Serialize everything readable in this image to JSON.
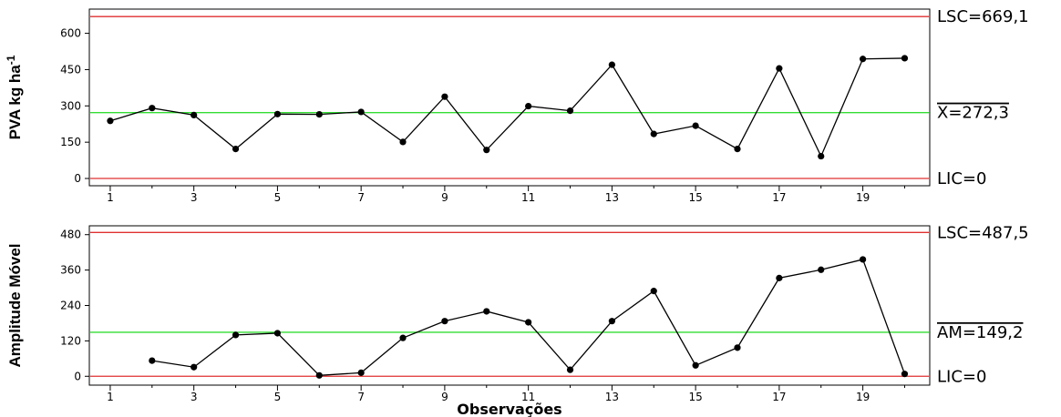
{
  "chart_data": [
    {
      "type": "line",
      "ylabel": "PVA kg ha",
      "ylabel_superscript": "-1",
      "xlabel": "",
      "x": [
        1,
        2,
        3,
        4,
        5,
        6,
        7,
        8,
        9,
        10,
        11,
        12,
        13,
        14,
        15,
        16,
        17,
        18,
        19,
        20
      ],
      "values": [
        238,
        291,
        262,
        122,
        266,
        265,
        275,
        151,
        338,
        118,
        299,
        280,
        470,
        184,
        218,
        122,
        455,
        92,
        494,
        497
      ],
      "xticks": [
        "1",
        "3",
        "5",
        "7",
        "9",
        "11",
        "13",
        "15",
        "17",
        "19"
      ],
      "yticks": [
        "0",
        "150",
        "300",
        "450",
        "600"
      ],
      "ylim": [
        -30,
        700
      ],
      "control_lines": [
        {
          "value": 669.1,
          "color": "#e03030",
          "label": "LSC=669,1"
        },
        {
          "value": 272.3,
          "color": "#33dd33",
          "label": "X=272,3",
          "overline": true
        },
        {
          "value": 0,
          "color": "#e03030",
          "label": "LIC=0"
        }
      ]
    },
    {
      "type": "line",
      "ylabel": "Amplitude Móvel",
      "xlabel": "Observações",
      "x": [
        2,
        3,
        4,
        5,
        6,
        7,
        8,
        9,
        10,
        11,
        12,
        13,
        14,
        15,
        16,
        17,
        18,
        19,
        20
      ],
      "values": [
        53,
        31,
        140,
        146,
        3,
        12,
        130,
        187,
        220,
        183,
        22,
        187,
        289,
        37,
        97,
        333,
        361,
        396,
        8
      ],
      "xticks": [
        "1",
        "3",
        "5",
        "7",
        "9",
        "11",
        "13",
        "15",
        "17",
        "19"
      ],
      "yticks": [
        "0",
        "120",
        "240",
        "360",
        "480"
      ],
      "ylim": [
        -30,
        510
      ],
      "control_lines": [
        {
          "value": 487.5,
          "color": "#e03030",
          "label": "LSC=487,5"
        },
        {
          "value": 149.2,
          "color": "#33dd33",
          "label": "AM=149,2",
          "overline": true
        },
        {
          "value": 0,
          "color": "#e03030",
          "label": "LIC=0"
        }
      ]
    }
  ]
}
